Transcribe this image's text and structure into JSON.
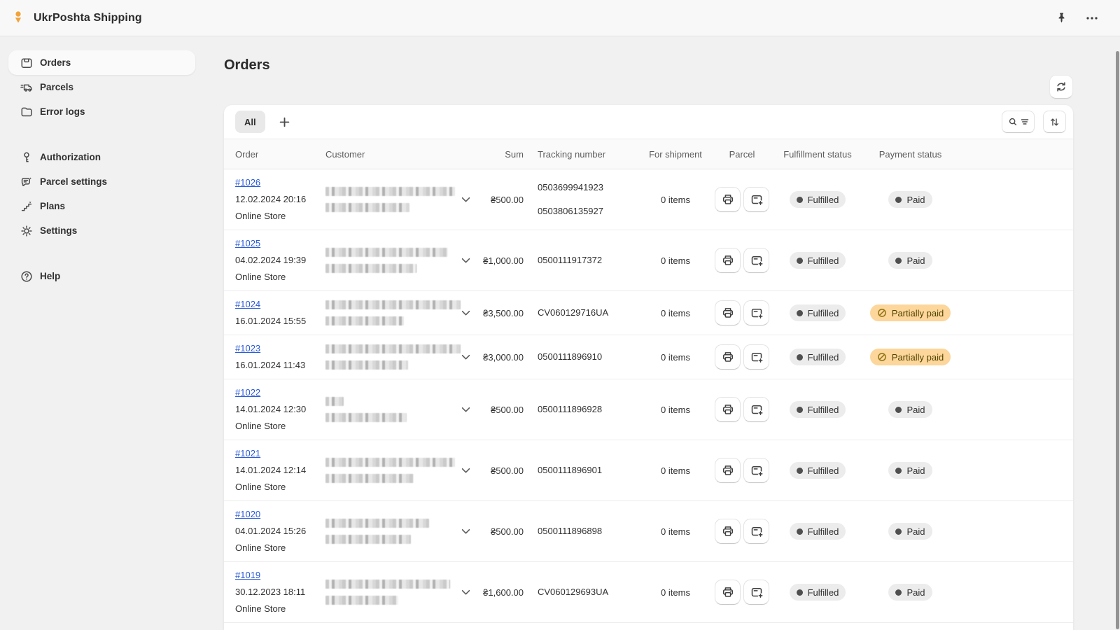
{
  "app": {
    "name": "UkrPoshta Shipping"
  },
  "topbar": {
    "icons": [
      "pin",
      "more-horizontal"
    ]
  },
  "sidebar": {
    "groups": [
      {
        "items": [
          {
            "label": "Orders",
            "icon": "orders",
            "active": true
          },
          {
            "label": "Parcels",
            "icon": "truck",
            "active": false
          },
          {
            "label": "Error logs",
            "icon": "folder",
            "active": false
          }
        ]
      },
      {
        "items": [
          {
            "label": "Authorization",
            "icon": "key",
            "active": false
          },
          {
            "label": "Parcel settings",
            "icon": "chat-settings",
            "active": false
          },
          {
            "label": "Plans",
            "icon": "stairs",
            "active": false
          },
          {
            "label": "Settings",
            "icon": "gear",
            "active": false
          }
        ]
      },
      {
        "items": [
          {
            "label": "Help",
            "icon": "question-circle",
            "active": false
          }
        ]
      }
    ]
  },
  "page": {
    "title": "Orders"
  },
  "toolbar": {
    "tabs": [
      {
        "label": "All",
        "active": true
      }
    ],
    "icons": [
      "plus",
      "search-filter",
      "sort-arrows",
      "refresh"
    ]
  },
  "table": {
    "columns": [
      "Order",
      "Customer",
      "Sum",
      "Tracking number",
      "For shipment",
      "Parcel",
      "Fulfillment status",
      "Payment status"
    ],
    "row_icons": [
      "printer",
      "create-parcel",
      "chevron-down"
    ],
    "rows": [
      {
        "id": "#1026",
        "date": "12.02.2024 20:16",
        "channel": "Online Store",
        "customer_redacted": [
          185,
          120
        ],
        "sum": "₴500.00",
        "tracking": [
          "0503699941923",
          "0503806135927"
        ],
        "shipment": "0 items",
        "fulfillment": "Fulfilled",
        "payment": "Paid",
        "payment_status": "paid"
      },
      {
        "id": "#1025",
        "date": "04.02.2024 19:39",
        "channel": "Online Store",
        "customer_redacted": [
          175,
          130
        ],
        "sum": "₴1,000.00",
        "tracking": [
          "0500111917372"
        ],
        "shipment": "0 items",
        "fulfillment": "Fulfilled",
        "payment": "Paid",
        "payment_status": "paid"
      },
      {
        "id": "#1024",
        "date": "16.01.2024 15:55",
        "channel": "",
        "customer_redacted": [
          193,
          112
        ],
        "sum": "₴3,500.00",
        "tracking": [
          "CV060129716UA"
        ],
        "shipment": "0 items",
        "fulfillment": "Fulfilled",
        "payment": "Partially paid",
        "payment_status": "partially_paid"
      },
      {
        "id": "#1023",
        "date": "16.01.2024 11:43",
        "channel": "",
        "customer_redacted": [
          193,
          118
        ],
        "sum": "₴3,000.00",
        "tracking": [
          "0500111896910"
        ],
        "shipment": "0 items",
        "fulfillment": "Fulfilled",
        "payment": "Partially paid",
        "payment_status": "partially_paid"
      },
      {
        "id": "#1022",
        "date": "14.01.2024 12:30",
        "channel": "Online Store",
        "customer_redacted": [
          26,
          116
        ],
        "sum": "₴500.00",
        "tracking": [
          "0500111896928"
        ],
        "shipment": "0 items",
        "fulfillment": "Fulfilled",
        "payment": "Paid",
        "payment_status": "paid"
      },
      {
        "id": "#1021",
        "date": "14.01.2024 12:14",
        "channel": "Online Store",
        "customer_redacted": [
          185,
          126
        ],
        "sum": "₴500.00",
        "tracking": [
          "0500111896901"
        ],
        "shipment": "0 items",
        "fulfillment": "Fulfilled",
        "payment": "Paid",
        "payment_status": "paid"
      },
      {
        "id": "#1020",
        "date": "04.01.2024 15:26",
        "channel": "Online Store",
        "customer_redacted": [
          148,
          122
        ],
        "sum": "₴500.00",
        "tracking": [
          "0500111896898"
        ],
        "shipment": "0 items",
        "fulfillment": "Fulfilled",
        "payment": "Paid",
        "payment_status": "paid"
      },
      {
        "id": "#1019",
        "date": "30.12.2023 18:11",
        "channel": "Online Store",
        "customer_redacted": [
          178,
          104
        ],
        "sum": "₴1,600.00",
        "tracking": [
          "CV060129693UA"
        ],
        "shipment": "0 items",
        "fulfillment": "Fulfilled",
        "payment": "Paid",
        "payment_status": "paid"
      }
    ]
  },
  "colors": {
    "link_blue": "#2a5ad7",
    "badge_neutral_bg": "#ececec",
    "badge_warning_bg": "#fcd69b",
    "badge_warning_text": "#514200",
    "status_dot": "#4f4f4f",
    "logo_amber": "#f2a33c",
    "page_bg": "#f1f1f1",
    "card_bg": "#ffffff"
  }
}
